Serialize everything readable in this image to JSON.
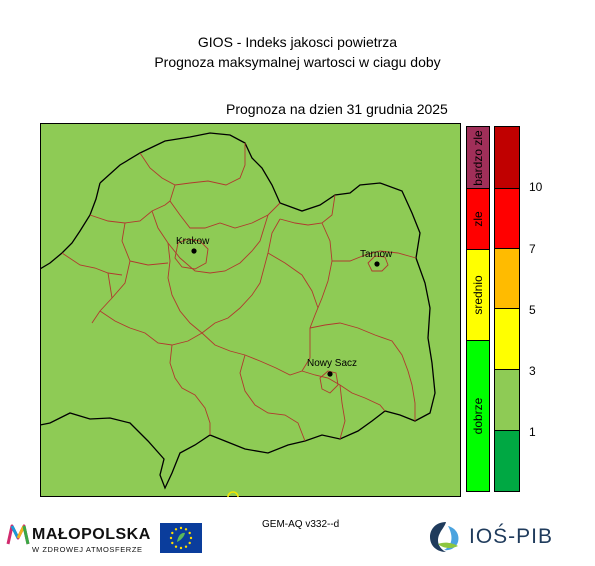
{
  "header": {
    "title_line1": "GIOS - Indeks jakosci powietrza",
    "title_line2": "Prognoza maksymalnej wartosci w ciagu doby",
    "forecast_label": "Prognoza na dzien  31 grudnia 2025"
  },
  "map": {
    "fill_color": "#8ecb55",
    "border_color": "#000000",
    "district_line_color": "#b03a2e",
    "cities": [
      {
        "name": "Krakow"
      },
      {
        "name": "Tarnow"
      },
      {
        "name": "Nowy Sacz"
      }
    ]
  },
  "categories": [
    {
      "label": "bardzo zle",
      "color": "#a02f59"
    },
    {
      "label": "zle",
      "color": "#ff0000"
    },
    {
      "label": "srednio",
      "color": "#ffff00"
    },
    {
      "label": "dobrze",
      "color": "#00ff00"
    }
  ],
  "scale": {
    "colors": [
      "#c00000",
      "#ff0000",
      "#ffbb00",
      "#ffff00",
      "#8ecb55",
      "#00a843"
    ],
    "ticks": [
      "10",
      "7",
      "5",
      "3",
      "1"
    ]
  },
  "footer": {
    "model": "GEM-AQ v332--d",
    "malopolska_name": "MAŁOPOLSKA",
    "malopolska_tagline": "W ZDROWEJ ATMOSFERZE",
    "ios_name": "IOŚ-PIB"
  }
}
